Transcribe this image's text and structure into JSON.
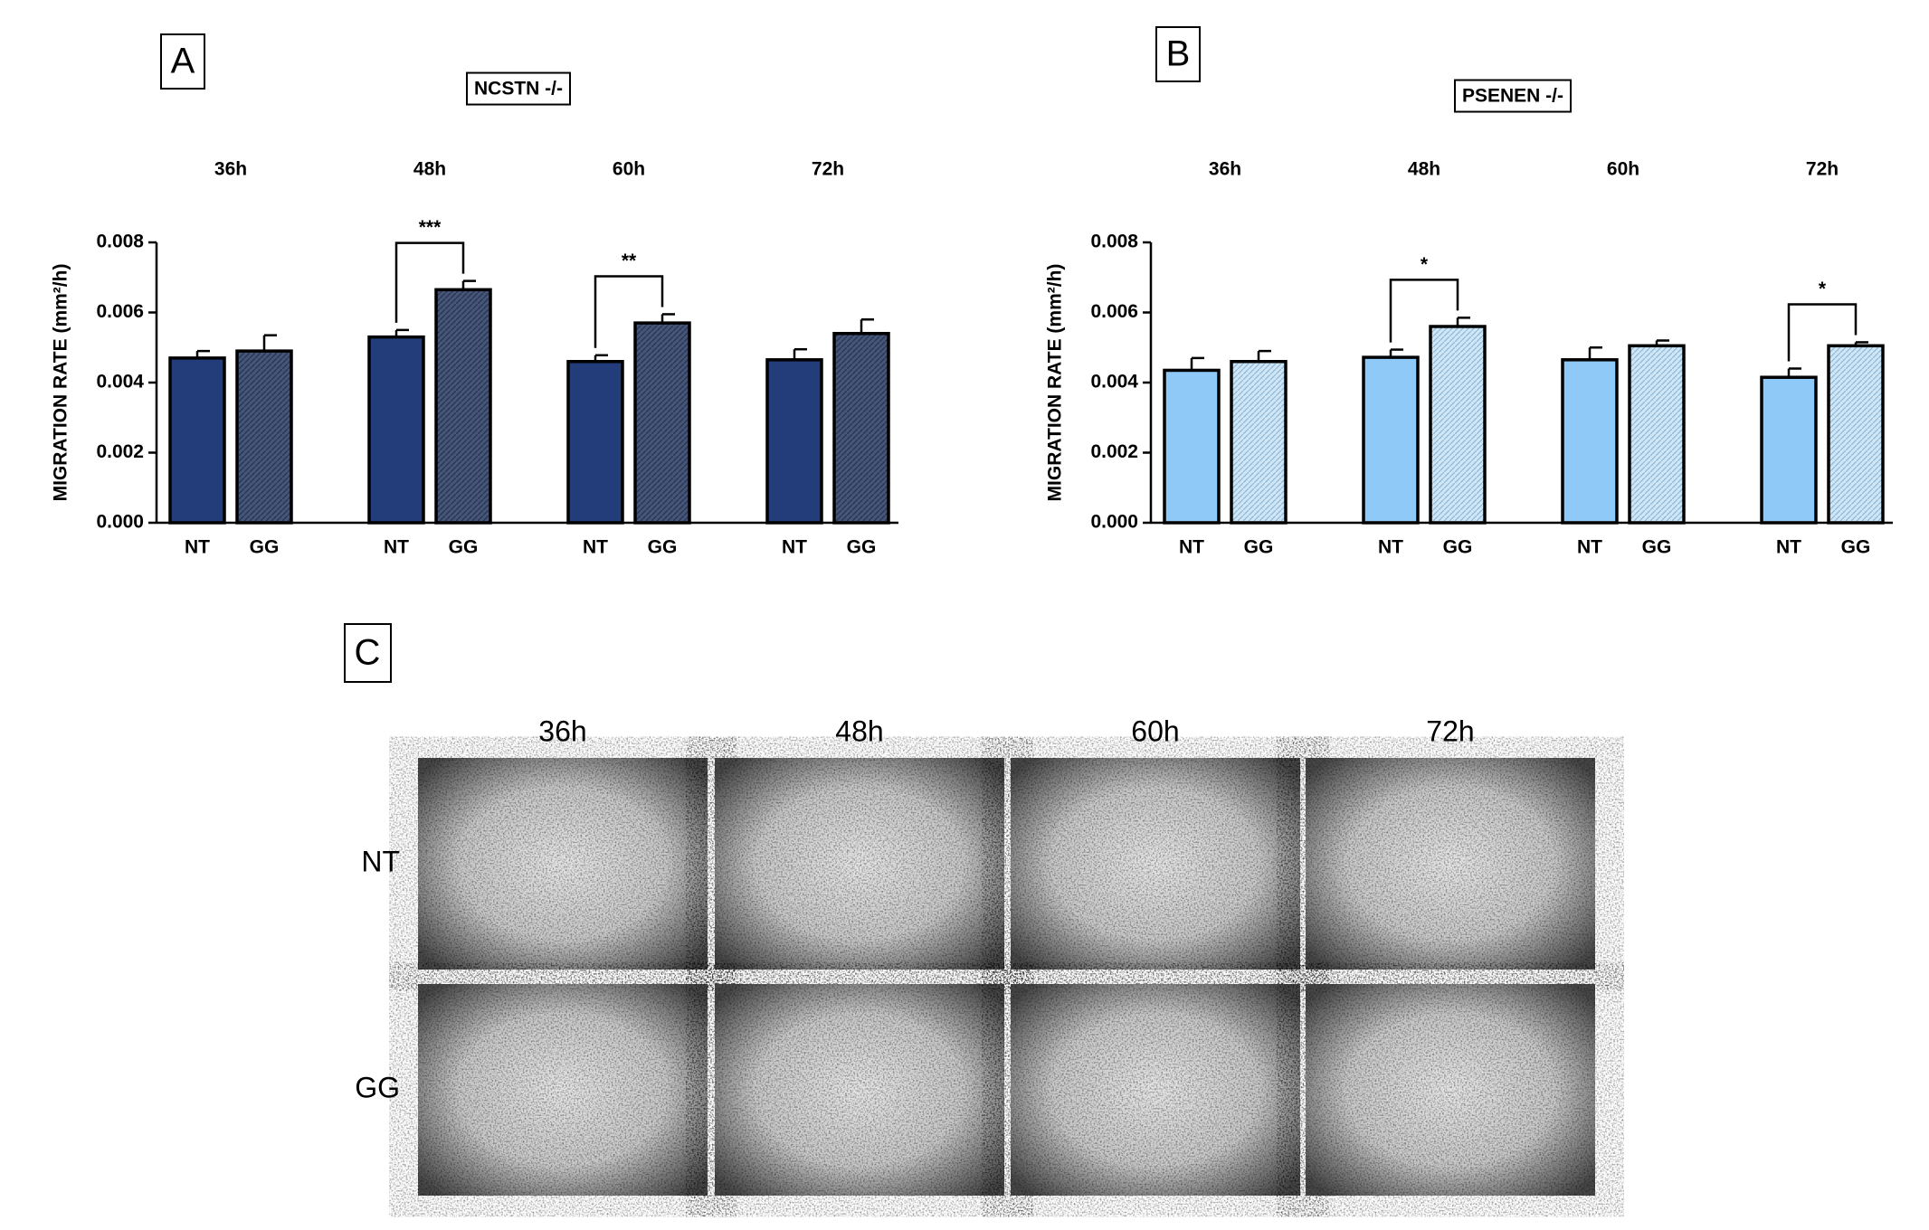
{
  "chart_data": [
    {
      "type": "bar",
      "panel": "A",
      "title": "NCSTN -/-",
      "ylabel": "MIGRATION RATE (mm²/h)",
      "categories": [
        "36h",
        "48h",
        "60h",
        "72h"
      ],
      "series": [
        {
          "name": "NT",
          "color": "#233d7b",
          "values": [
            0.0047,
            0.0053,
            0.0046,
            0.00465
          ],
          "errors": [
            0.0002,
            0.0002,
            0.00018,
            0.0003
          ]
        },
        {
          "name": "GG",
          "color": "#46567a",
          "hatched": true,
          "values": [
            0.0049,
            0.00665,
            0.0057,
            0.0054
          ],
          "errors": [
            0.00045,
            0.00025,
            0.00025,
            0.0004
          ]
        }
      ],
      "significance": [
        null,
        "***",
        "**",
        null
      ],
      "ylim": [
        0,
        0.008
      ],
      "yticks": [
        {
          "value": 0,
          "label": "0.000"
        },
        {
          "value": 0.002,
          "label": "0.002"
        },
        {
          "value": 0.004,
          "label": "0.004"
        },
        {
          "value": 0.006,
          "label": "0.006"
        },
        {
          "value": 0.008,
          "label": "0.008"
        }
      ]
    },
    {
      "type": "bar",
      "panel": "B",
      "title": "PSENEN -/-",
      "ylabel": "MIGRATION RATE (mm²/h)",
      "categories": [
        "36h",
        "48h",
        "60h",
        "72h"
      ],
      "series": [
        {
          "name": "NT",
          "color": "#8ec9f7",
          "values": [
            0.00435,
            0.00472,
            0.00465,
            0.00415
          ],
          "errors": [
            0.00035,
            0.00022,
            0.00035,
            0.00025
          ]
        },
        {
          "name": "GG",
          "color": "#cfe6f6",
          "hatched": true,
          "values": [
            0.0046,
            0.0056,
            0.00505,
            0.00505
          ],
          "errors": [
            0.0003,
            0.00025,
            0.00015,
            0.0001
          ]
        }
      ],
      "significance": [
        null,
        "*",
        null,
        "*"
      ],
      "ylim": [
        0,
        0.008
      ],
      "yticks": [
        {
          "value": 0,
          "label": "0.000"
        },
        {
          "value": 0.002,
          "label": "0.002"
        },
        {
          "value": 0.004,
          "label": "0.004"
        },
        {
          "value": 0.006,
          "label": "0.006"
        },
        {
          "value": 0.008,
          "label": "0.008"
        }
      ]
    }
  ],
  "panel_c": {
    "panel": "C",
    "columns": [
      "36h",
      "48h",
      "60h",
      "72h"
    ],
    "rows": [
      "NT",
      "GG"
    ]
  }
}
